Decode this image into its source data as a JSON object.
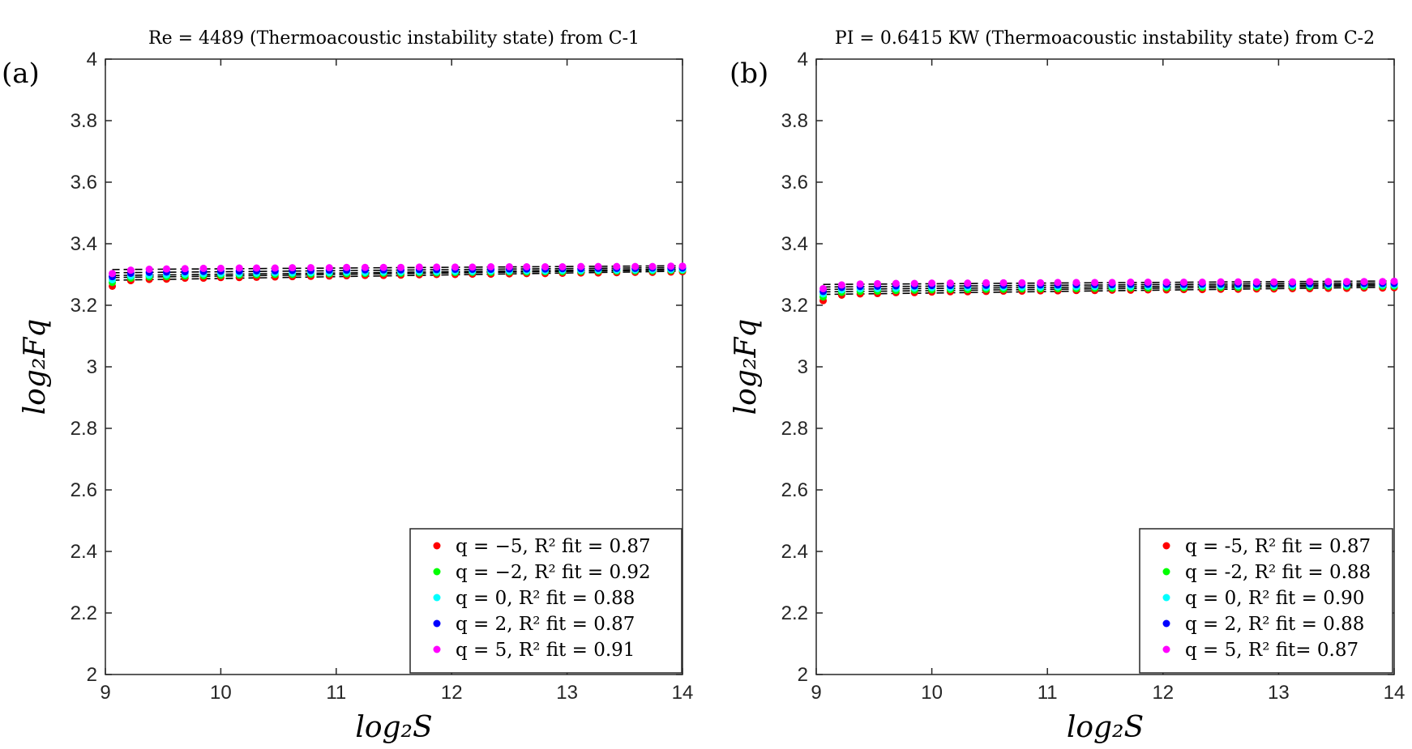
{
  "chart_data": [
    {
      "type": "scatter",
      "panel_label": "(a)",
      "title": "Re = 4489 (Thermoacoustic instability state) from C-1",
      "xlabel": "log₂S",
      "ylabel": "log₂Fq",
      "xlim": [
        9,
        14
      ],
      "ylim": [
        2,
        4
      ],
      "xticks": [
        "9",
        "10",
        "11",
        "12",
        "13",
        "14"
      ],
      "yticks": [
        "2",
        "2.2",
        "2.4",
        "2.6",
        "2.8",
        "3",
        "3.2",
        "3.4",
        "3.6",
        "3.8",
        "4"
      ],
      "legend_position": "bottom-right",
      "x": [
        9.06,
        9.22,
        9.38,
        9.53,
        9.69,
        9.85,
        10.0,
        10.16,
        10.31,
        10.47,
        10.62,
        10.78,
        10.94,
        11.09,
        11.25,
        11.41,
        11.56,
        11.72,
        11.87,
        12.03,
        12.18,
        12.34,
        12.5,
        12.65,
        12.81,
        12.96,
        13.12,
        13.27,
        13.43,
        13.59,
        13.74,
        13.9,
        14.0
      ],
      "series": [
        {
          "name": "q = −5, R² fit = 0.87",
          "color": "#ff0000",
          "values": [
            3.262,
            3.28,
            3.284,
            3.285,
            3.288,
            3.288,
            3.29,
            3.29,
            3.291,
            3.292,
            3.293,
            3.294,
            3.295,
            3.296,
            3.297,
            3.297,
            3.298,
            3.299,
            3.3,
            3.3,
            3.301,
            3.301,
            3.302,
            3.303,
            3.303,
            3.304,
            3.305,
            3.305,
            3.306,
            3.307,
            3.307,
            3.308,
            3.309
          ]
        },
        {
          "name": "q = −2, R² fit = 0.92",
          "color": "#00ff00",
          "values": [
            3.274,
            3.288,
            3.292,
            3.293,
            3.295,
            3.296,
            3.297,
            3.298,
            3.299,
            3.3,
            3.3,
            3.301,
            3.302,
            3.302,
            3.303,
            3.304,
            3.304,
            3.305,
            3.305,
            3.306,
            3.307,
            3.307,
            3.308,
            3.308,
            3.309,
            3.309,
            3.31,
            3.311,
            3.311,
            3.312,
            3.312,
            3.313,
            3.313
          ]
        },
        {
          "name": "q = 0, R² fit = 0.88",
          "color": "#00ffff",
          "values": [
            3.283,
            3.295,
            3.298,
            3.299,
            3.301,
            3.302,
            3.303,
            3.303,
            3.304,
            3.305,
            3.305,
            3.306,
            3.306,
            3.307,
            3.307,
            3.308,
            3.308,
            3.309,
            3.309,
            3.31,
            3.31,
            3.311,
            3.311,
            3.312,
            3.312,
            3.313,
            3.313,
            3.314,
            3.314,
            3.315,
            3.315,
            3.316,
            3.316
          ]
        },
        {
          "name": "q = 2, R² fit = 0.87",
          "color": "#0000ff",
          "values": [
            3.293,
            3.304,
            3.307,
            3.308,
            3.309,
            3.31,
            3.311,
            3.311,
            3.312,
            3.312,
            3.313,
            3.313,
            3.314,
            3.314,
            3.315,
            3.315,
            3.315,
            3.316,
            3.316,
            3.317,
            3.317,
            3.317,
            3.318,
            3.318,
            3.318,
            3.319,
            3.319,
            3.32,
            3.32,
            3.32,
            3.321,
            3.321,
            3.321
          ]
        },
        {
          "name": "q = 5, R² fit = 0.91",
          "color": "#ff00ff",
          "values": [
            3.303,
            3.314,
            3.317,
            3.318,
            3.319,
            3.32,
            3.32,
            3.321,
            3.321,
            3.321,
            3.322,
            3.322,
            3.322,
            3.323,
            3.323,
            3.323,
            3.323,
            3.324,
            3.324,
            3.324,
            3.324,
            3.325,
            3.325,
            3.325,
            3.325,
            3.325,
            3.326,
            3.326,
            3.326,
            3.326,
            3.326,
            3.327,
            3.327
          ]
        }
      ]
    },
    {
      "type": "scatter",
      "panel_label": "(b)",
      "title": "PI = 0.6415 KW (Thermoacoustic instability state) from C-2",
      "xlabel": "log₂S",
      "ylabel": "log₂Fq",
      "xlim": [
        9,
        14
      ],
      "ylim": [
        2,
        4
      ],
      "xticks": [
        "9",
        "10",
        "11",
        "12",
        "13",
        "14"
      ],
      "yticks": [
        "2",
        "2.2",
        "2.4",
        "2.6",
        "2.8",
        "3",
        "3.2",
        "3.4",
        "3.6",
        "3.8",
        "4"
      ],
      "legend_position": "bottom-right",
      "x": [
        9.06,
        9.22,
        9.38,
        9.53,
        9.69,
        9.85,
        10.0,
        10.16,
        10.31,
        10.47,
        10.62,
        10.78,
        10.94,
        11.09,
        11.25,
        11.41,
        11.56,
        11.72,
        11.87,
        12.03,
        12.18,
        12.34,
        12.5,
        12.65,
        12.81,
        12.96,
        13.12,
        13.27,
        13.43,
        13.59,
        13.74,
        13.9,
        14.0
      ],
      "series": [
        {
          "name": "q = -5, R² fit = 0.87",
          "color": "#ff0000",
          "values": [
            3.215,
            3.233,
            3.237,
            3.238,
            3.241,
            3.241,
            3.243,
            3.244,
            3.244,
            3.245,
            3.246,
            3.246,
            3.247,
            3.247,
            3.248,
            3.248,
            3.249,
            3.249,
            3.25,
            3.25,
            3.251,
            3.251,
            3.252,
            3.252,
            3.253,
            3.253,
            3.254,
            3.254,
            3.255,
            3.255,
            3.256,
            3.256,
            3.257
          ]
        },
        {
          "name": "q = -2, R² fit = 0.88",
          "color": "#00ff00",
          "values": [
            3.227,
            3.242,
            3.245,
            3.246,
            3.248,
            3.249,
            3.25,
            3.251,
            3.251,
            3.252,
            3.252,
            3.253,
            3.253,
            3.254,
            3.254,
            3.255,
            3.255,
            3.256,
            3.256,
            3.257,
            3.257,
            3.258,
            3.258,
            3.258,
            3.259,
            3.259,
            3.26,
            3.26,
            3.261,
            3.261,
            3.261,
            3.262,
            3.262
          ]
        },
        {
          "name": "q = 0, R² fit = 0.90",
          "color": "#00ffff",
          "values": [
            3.237,
            3.25,
            3.253,
            3.254,
            3.255,
            3.256,
            3.257,
            3.257,
            3.258,
            3.258,
            3.259,
            3.259,
            3.259,
            3.26,
            3.26,
            3.261,
            3.261,
            3.261,
            3.262,
            3.262,
            3.262,
            3.263,
            3.263,
            3.263,
            3.264,
            3.264,
            3.264,
            3.265,
            3.265,
            3.265,
            3.266,
            3.266,
            3.266
          ]
        },
        {
          "name": "q = 2, R² fit = 0.88",
          "color": "#0000ff",
          "values": [
            3.245,
            3.258,
            3.261,
            3.262,
            3.263,
            3.263,
            3.264,
            3.264,
            3.265,
            3.265,
            3.265,
            3.266,
            3.266,
            3.266,
            3.267,
            3.267,
            3.267,
            3.268,
            3.268,
            3.268,
            3.268,
            3.269,
            3.269,
            3.269,
            3.269,
            3.27,
            3.27,
            3.27,
            3.27,
            3.271,
            3.271,
            3.271,
            3.271
          ]
        },
        {
          "name": "q = 5, R² fit= 0.87",
          "color": "#ff00ff",
          "values": [
            3.254,
            3.266,
            3.269,
            3.27,
            3.271,
            3.271,
            3.272,
            3.272,
            3.272,
            3.273,
            3.273,
            3.273,
            3.273,
            3.274,
            3.274,
            3.274,
            3.274,
            3.275,
            3.275,
            3.275,
            3.275,
            3.275,
            3.276,
            3.276,
            3.276,
            3.276,
            3.276,
            3.277,
            3.277,
            3.277,
            3.277,
            3.277,
            3.278
          ]
        }
      ]
    }
  ]
}
